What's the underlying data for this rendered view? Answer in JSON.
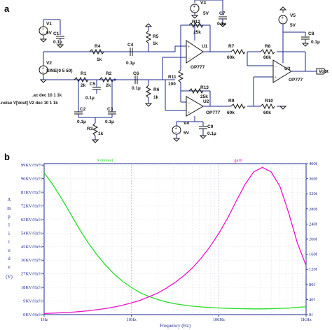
{
  "panel_a": {
    "panel_label": "a",
    "components": {
      "v1": {
        "name": "V1",
        "value": "5V"
      },
      "v2": {
        "name": "V2",
        "value": "SINE(0 5 50)"
      },
      "v3": {
        "name": "V3",
        "value": "5V"
      },
      "v4": {
        "name": "V4",
        "value": "5V"
      },
      "v5": {
        "name": "V5",
        "value": "5V"
      },
      "c1": {
        "name": "C1",
        "value": "0.1µ"
      },
      "c2": {
        "name": "C2",
        "value": "0.1µ"
      },
      "c3": {
        "name": "C3",
        "value": "0.1µ"
      },
      "c4": {
        "name": "C4",
        "value": "0.1µ"
      },
      "c5": {
        "name": "C5",
        "value": "0.1µ"
      },
      "c6": {
        "name": "C6",
        "value": "0.1µ"
      },
      "c7": {
        "name": "C7",
        "value": "0.1µ"
      },
      "c8": {
        "name": "C8",
        "value": "0.1µ"
      },
      "c9": {
        "name": "C9",
        "value": "0.1µ"
      },
      "r1": {
        "name": "R1",
        "value": "2k"
      },
      "r2": {
        "name": "R2",
        "value": "2k"
      },
      "r3": {
        "name": "R3",
        "value": "1k"
      },
      "r4": {
        "name": "R4",
        "value": "1k"
      },
      "r5": {
        "name": "R5",
        "value": "1k"
      },
      "r6": {
        "name": "R6",
        "value": "1k"
      },
      "r7": {
        "name": "R7",
        "value": "60k"
      },
      "r8": {
        "name": "R8",
        "value": "60k"
      },
      "r9": {
        "name": "R9",
        "value": "60k"
      },
      "r10": {
        "name": "R10",
        "value": "60k"
      },
      "r11": {
        "name": "R11",
        "value": "100"
      },
      "r12": {
        "name": "R12",
        "value": "25k"
      },
      "r13": {
        "name": "R13",
        "value": "25k"
      },
      "u1": {
        "name": "U1",
        "value": "OP777"
      },
      "u2": {
        "name": "U2",
        "value": "OP777"
      },
      "u3": {
        "name": "U3",
        "value": "OP777"
      }
    },
    "net_vout": "Vout",
    "directive_ac": ".ac dec 10 1 1k",
    "directive_noise": ".noise V[Vout] V2 dec 10 1 1k"
  },
  "panel_b": {
    "panel_label": "b"
  },
  "chart_data": {
    "type": "line",
    "xlabel": "Frequency (Hz)",
    "x_scale": "log",
    "xlim": [
      1,
      1000
    ],
    "x_ticks": [
      "1Hz",
      "10Hz",
      "100Hz",
      "1KHz"
    ],
    "ylabel": "Amplitude (V)",
    "ylim_left": [
      0,
      100
    ],
    "y_ticks_left": [
      "0KV/Hz½",
      "9KV/Hz½",
      "18KV/Hz½",
      "27KV/Hz½",
      "36KV/Hz½",
      "45KV/Hz½",
      "54KV/Hz½",
      "63KV/Hz½",
      "72KV/Hz½",
      "81KV/Hz½",
      "90KV/Hz½",
      "99KV/Hz½"
    ],
    "ylim_right": [
      0,
      400
    ],
    "y_ticks_right": [
      "0f",
      "40f",
      "80f",
      "120f",
      "160f",
      "200f",
      "240f",
      "280f",
      "320f",
      "360f",
      "400f"
    ],
    "series": [
      {
        "name": "V(noise)",
        "color": "#22dd22",
        "axis": "left",
        "x": [
          1,
          1.26,
          1.58,
          2,
          2.51,
          3.16,
          3.98,
          5.01,
          6.31,
          7.94,
          10,
          12.6,
          15.8,
          20,
          25.1,
          31.6,
          39.8,
          50.1,
          63.1,
          79.4,
          100,
          126,
          158,
          200,
          251,
          316,
          398,
          501,
          631,
          794,
          1000
        ],
        "values": [
          94,
          86,
          77,
          67,
          57,
          48,
          40,
          33,
          27,
          22,
          18,
          14.5,
          12,
          10,
          8.4,
          7.2,
          6.3,
          5.6,
          5.1,
          4.7,
          4.4,
          4.2,
          4.0,
          3.9,
          3.8,
          3.8,
          3.9,
          4.1,
          4.3,
          4.8,
          5.2
        ]
      },
      {
        "name": "gain",
        "color": "#ee11cc",
        "axis": "right",
        "x": [
          1,
          1.26,
          1.58,
          2,
          2.51,
          3.16,
          3.98,
          5.01,
          6.31,
          7.94,
          10,
          12.6,
          15.8,
          20,
          25.1,
          31.6,
          39.8,
          50.1,
          63.1,
          79.4,
          100,
          126,
          158,
          200,
          251,
          316,
          398,
          501,
          631,
          794,
          1000
        ],
        "values": [
          3,
          4,
          5,
          6,
          8,
          10,
          13,
          16,
          20,
          25,
          31,
          38,
          47,
          57,
          70,
          85,
          103,
          124,
          150,
          180,
          215,
          255,
          300,
          345,
          378,
          390,
          378,
          340,
          270,
          190,
          130
        ]
      }
    ]
  }
}
